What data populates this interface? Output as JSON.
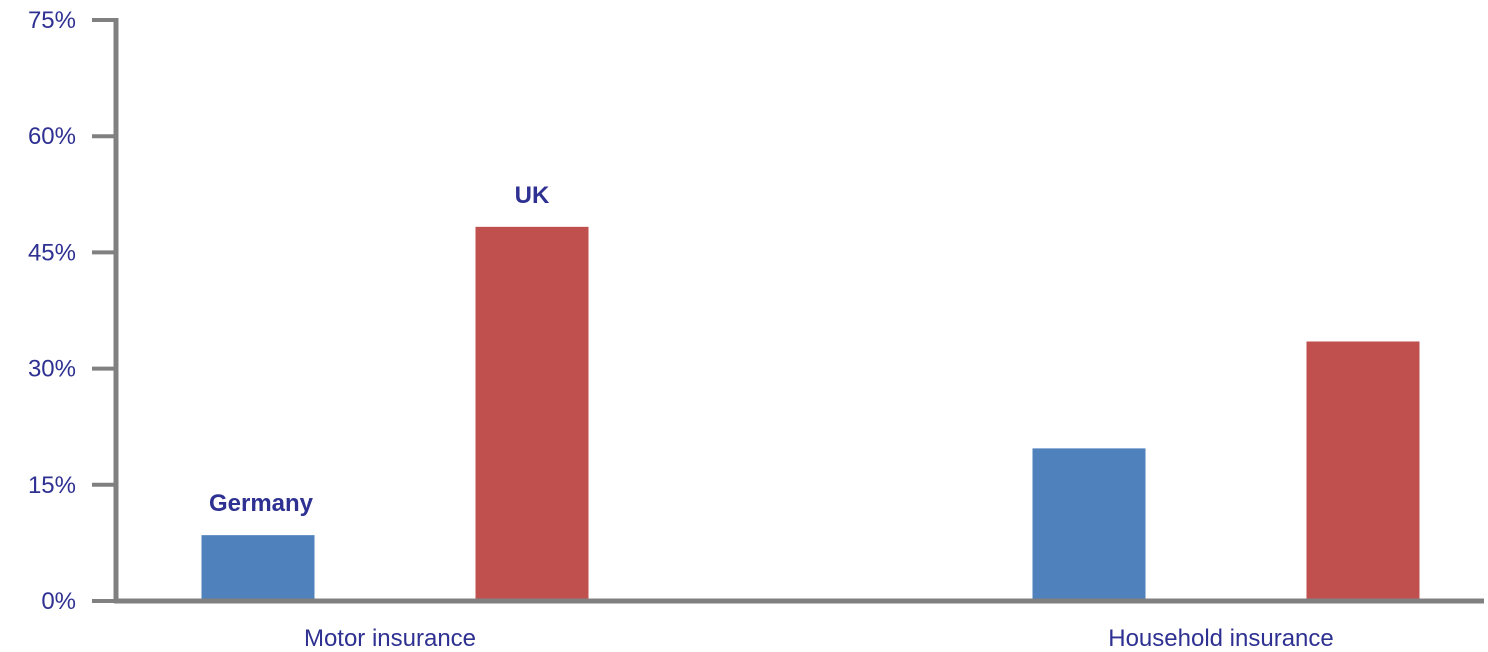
{
  "chart_data": {
    "type": "bar",
    "categories": [
      "Motor insurance",
      "Household insurance"
    ],
    "series": [
      {
        "name": "Germany",
        "values": [
          8.5,
          19.7
        ],
        "color": "#4f81bd"
      },
      {
        "name": "UK",
        "values": [
          48.3,
          33.5
        ],
        "color": "#c0504d"
      }
    ],
    "title": "",
    "xlabel": "",
    "ylabel": "",
    "ylim": [
      0,
      75
    ],
    "yticks": [
      0,
      15,
      30,
      45,
      60,
      75
    ],
    "ytick_labels": [
      "0%",
      "15%",
      "30%",
      "45%",
      "60%",
      "75%"
    ],
    "grid": false,
    "legend": "inline labels above first-category bars",
    "text_color": "#2e3192",
    "axis_color": "#808080"
  }
}
